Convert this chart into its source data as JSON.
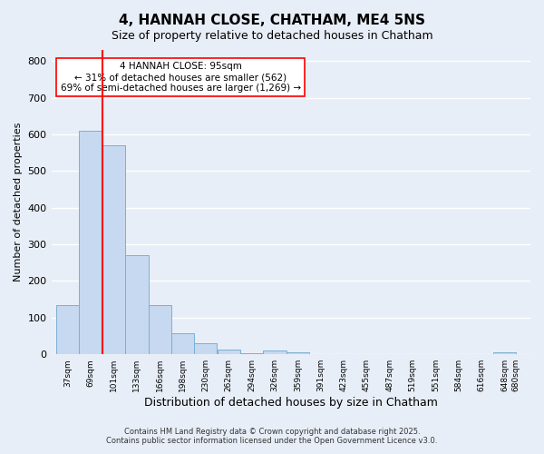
{
  "title": "4, HANNAH CLOSE, CHATHAM, ME4 5NS",
  "subtitle": "Size of property relative to detached houses in Chatham",
  "xlabel": "Distribution of detached houses by size in Chatham",
  "ylabel": "Number of detached properties",
  "bar_color": "#c6d9f0",
  "bar_edge_color": "#7ab0d4",
  "vline_x": 101,
  "vline_color": "red",
  "categories": [
    "37sqm",
    "69sqm",
    "101sqm",
    "133sqm",
    "166sqm",
    "198sqm",
    "230sqm",
    "262sqm",
    "294sqm",
    "326sqm",
    "359sqm",
    "391sqm",
    "423sqm",
    "455sqm",
    "487sqm",
    "519sqm",
    "551sqm",
    "584sqm",
    "616sqm",
    "648sqm",
    "680sqm"
  ],
  "bar_starts": [
    37,
    69,
    101,
    133,
    166,
    198,
    230,
    262,
    294,
    326,
    359,
    391,
    423,
    455,
    487,
    519,
    551,
    584,
    616,
    648
  ],
  "bar_widths": [
    32,
    32,
    32,
    33,
    32,
    32,
    32,
    32,
    32,
    33,
    32,
    32,
    32,
    32,
    32,
    32,
    33,
    32,
    32,
    32
  ],
  "values": [
    133,
    610,
    570,
    270,
    133,
    57,
    30,
    14,
    2,
    10,
    5,
    0,
    0,
    0,
    0,
    0,
    0,
    0,
    0,
    5
  ],
  "ylim": [
    0,
    830
  ],
  "yticks": [
    0,
    100,
    200,
    300,
    400,
    500,
    600,
    700,
    800
  ],
  "annotation_title": "4 HANNAH CLOSE: 95sqm",
  "annotation_line1": "← 31% of detached houses are smaller (562)",
  "annotation_line2": "69% of semi-detached houses are larger (1,269) →",
  "annotation_box_color": "white",
  "annotation_box_edge": "red",
  "footer_line1": "Contains HM Land Registry data © Crown copyright and database right 2025.",
  "footer_line2": "Contains public sector information licensed under the Open Government Licence v3.0.",
  "background_color": "#e8eef7",
  "grid_color": "white",
  "xlim_left": 30,
  "xlim_right": 700
}
